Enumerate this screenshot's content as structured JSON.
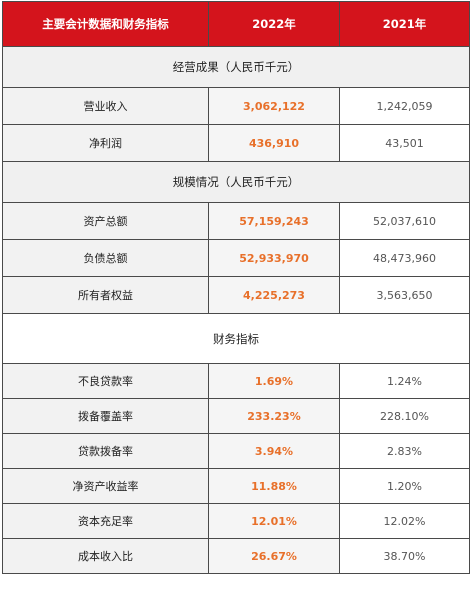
{
  "header": {
    "col1": "主要会计数据和财务指标",
    "col2": "2022年",
    "col3": "2021年"
  },
  "sections": [
    {
      "title": "经营成果（人民币千元）",
      "rows": [
        {
          "label": "营业收入",
          "y2022": "3,062,122",
          "y2021": "1,242,059"
        },
        {
          "label": "净利润",
          "y2022": "436,910",
          "y2021": "43,501"
        }
      ]
    },
    {
      "title": "规模情况（人民币千元）",
      "rows": [
        {
          "label": "资产总额",
          "y2022": "57,159,243",
          "y2021": "52,037,610"
        },
        {
          "label": "负债总额",
          "y2022": "52,933,970",
          "y2021": "48,473,960"
        },
        {
          "label": "所有者权益",
          "y2022": "4,225,273",
          "y2021": "3,563,650"
        }
      ]
    },
    {
      "title": "财务指标",
      "rows": [
        {
          "label": "不良贷款率",
          "y2022": "1.69%",
          "y2021": "1.24%"
        },
        {
          "label": "拨备覆盖率",
          "y2022": "233.23%",
          "y2021": "228.10%"
        },
        {
          "label": "贷款拨备率",
          "y2022": "3.94%",
          "y2021": "2.83%"
        },
        {
          "label": "净资产收益率",
          "y2022": "11.88%",
          "y2021": "1.20%"
        },
        {
          "label": "资本充足率",
          "y2022": "12.01%",
          "y2021": "12.02%"
        },
        {
          "label": "成本收入比",
          "y2022": "26.67%",
          "y2021": "38.70%"
        }
      ]
    }
  ],
  "colors": {
    "header_bg": "#d4141c",
    "highlight_text": "#e8702a"
  }
}
